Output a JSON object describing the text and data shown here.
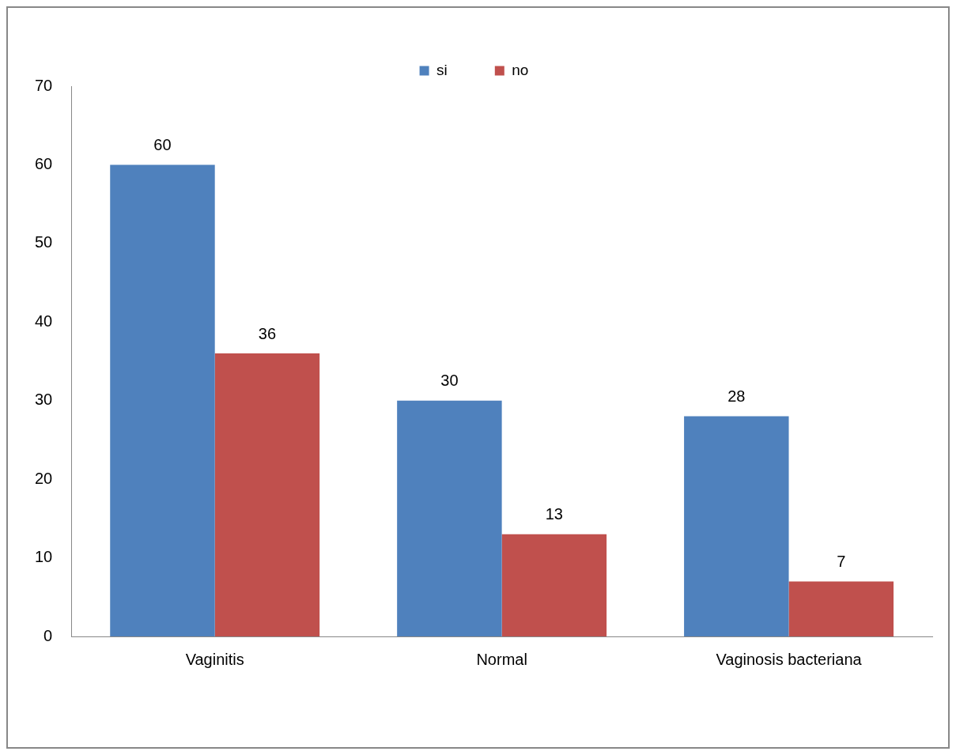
{
  "chart_data": {
    "type": "bar",
    "categories": [
      "Vaginitis",
      "Normal",
      "Vaginosis bacteriana"
    ],
    "series": [
      {
        "name": "si",
        "color": "#4f81bd",
        "values": [
          60,
          30,
          28
        ]
      },
      {
        "name": "no",
        "color": "#c0504d",
        "values": [
          36,
          13,
          7
        ]
      }
    ],
    "ylim": [
      0,
      70
    ],
    "yticks": [
      0,
      10,
      20,
      30,
      40,
      50,
      60,
      70
    ],
    "grid": false,
    "legend": "top",
    "data_labels": true
  }
}
